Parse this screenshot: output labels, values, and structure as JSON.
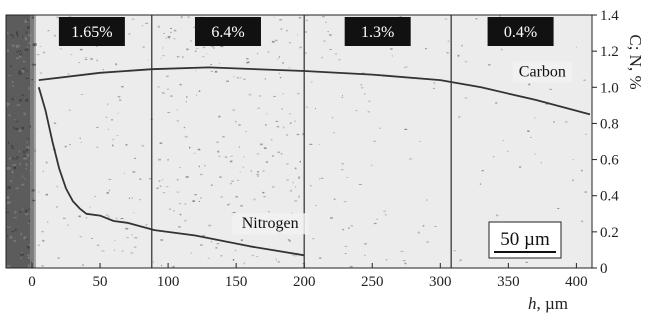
{
  "chart_data": {
    "type": "line",
    "title": "",
    "xlabel_var": "h",
    "xlabel_unit": ", µm",
    "ylabel": "C; N, %",
    "xlim": [
      0,
      410
    ],
    "ylim": [
      0,
      1.4
    ],
    "x_ticks": [
      0,
      50,
      100,
      150,
      200,
      250,
      300,
      350,
      400
    ],
    "y_ticks": [
      0,
      0.2,
      0.4,
      0.6,
      0.8,
      1.0,
      1.2,
      1.4
    ],
    "y_tick_labels": [
      "0",
      "0.2",
      "0.4",
      "0.6",
      "0.8",
      "1.0",
      "1.2",
      "1.4"
    ],
    "zone_boundaries": [
      88,
      200,
      308
    ],
    "zones": [
      {
        "label": "1.65%",
        "center": 44
      },
      {
        "label": "6.4%",
        "center": 144
      },
      {
        "label": "1.3%",
        "center": 254
      },
      {
        "label": "0.4%",
        "center": 359
      }
    ],
    "series": [
      {
        "name": "Carbon",
        "label_at": {
          "x": 375,
          "y": 1.06
        },
        "points": [
          [
            5,
            1.04
          ],
          [
            50,
            1.08
          ],
          [
            88,
            1.1
          ],
          [
            130,
            1.11
          ],
          [
            200,
            1.09
          ],
          [
            250,
            1.07
          ],
          [
            300,
            1.04
          ],
          [
            330,
            1.0
          ],
          [
            370,
            0.93
          ],
          [
            410,
            0.85
          ]
        ]
      },
      {
        "name": "Nitrogen",
        "label_at": {
          "x": 175,
          "y": 0.22
        },
        "points": [
          [
            5,
            1.0
          ],
          [
            10,
            0.87
          ],
          [
            15,
            0.7
          ],
          [
            20,
            0.55
          ],
          [
            25,
            0.44
          ],
          [
            30,
            0.37
          ],
          [
            35,
            0.33
          ],
          [
            40,
            0.3
          ],
          [
            50,
            0.29
          ],
          [
            60,
            0.26
          ],
          [
            70,
            0.25
          ],
          [
            90,
            0.21
          ],
          [
            120,
            0.18
          ],
          [
            160,
            0.12
          ],
          [
            200,
            0.07
          ]
        ]
      }
    ],
    "scale_bar": {
      "label": "50 µm"
    },
    "background": "micrograph",
    "colors": {
      "line": "#333333",
      "zone_label_bg": "#111111",
      "boundary": "#3a3a3a"
    }
  }
}
